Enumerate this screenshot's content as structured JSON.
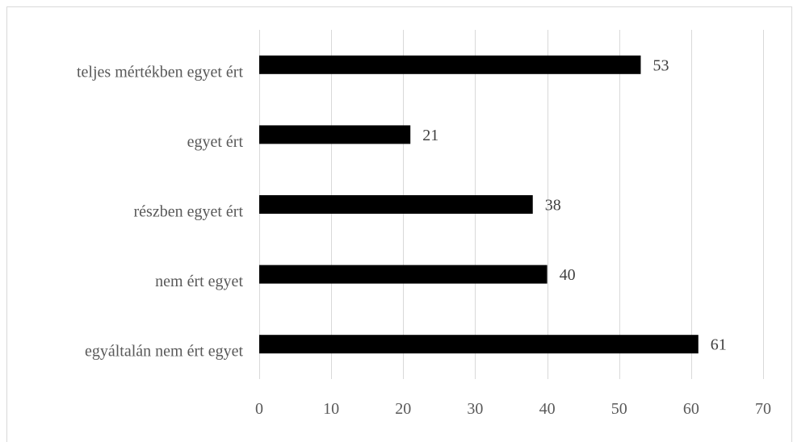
{
  "chart_data": {
    "type": "bar",
    "orientation": "horizontal",
    "categories": [
      "teljes mértékben egyet ért",
      "egyet ért",
      "részben egyet ért",
      "nem ért egyet",
      "egyáltalán nem ért egyet"
    ],
    "values": [
      53,
      21,
      38,
      40,
      61
    ],
    "data_labels": [
      "53",
      "21",
      "38",
      "40",
      "61"
    ],
    "xlim": [
      0,
      70
    ],
    "x_ticks": [
      0,
      10,
      20,
      30,
      40,
      50,
      60,
      70
    ],
    "x_tick_labels": [
      "0",
      "10",
      "20",
      "30",
      "40",
      "50",
      "60",
      "70"
    ],
    "title": "",
    "xlabel": "",
    "ylabel": "",
    "grid": "vertical",
    "legend": "none",
    "bar_color": "#000000",
    "grid_color": "#d9d9d9",
    "text_color": "#595959"
  }
}
